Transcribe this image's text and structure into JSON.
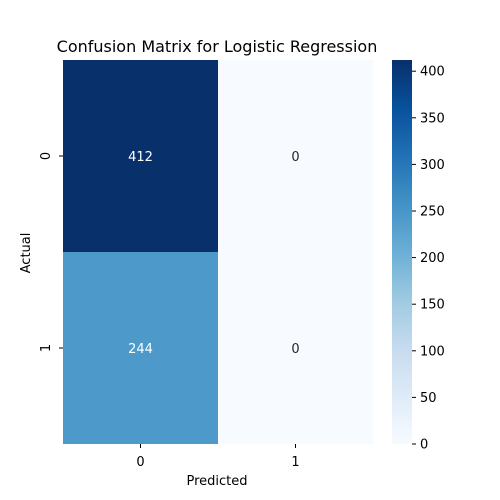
{
  "chart_data": {
    "type": "heatmap",
    "title": "Confusion Matrix for Logistic Regression",
    "xlabel": "Predicted",
    "ylabel": "Actual",
    "x_categories": [
      "0",
      "1"
    ],
    "y_categories": [
      "0",
      "1"
    ],
    "values": [
      [
        412,
        0
      ],
      [
        244,
        0
      ]
    ],
    "colorbar": {
      "min": 0,
      "max": 412,
      "ticks": [
        0,
        50,
        100,
        150,
        200,
        250,
        300,
        350,
        400
      ],
      "colormap": "Blues",
      "colors": [
        "#f7fbff",
        "#deebf7",
        "#c6dbef",
        "#9ecae1",
        "#6baed6",
        "#4292c6",
        "#2171b5",
        "#08519c",
        "#08306b"
      ]
    },
    "annotation_colors": {
      "light_text": "#ffffff",
      "dark_text": "#262626"
    }
  }
}
